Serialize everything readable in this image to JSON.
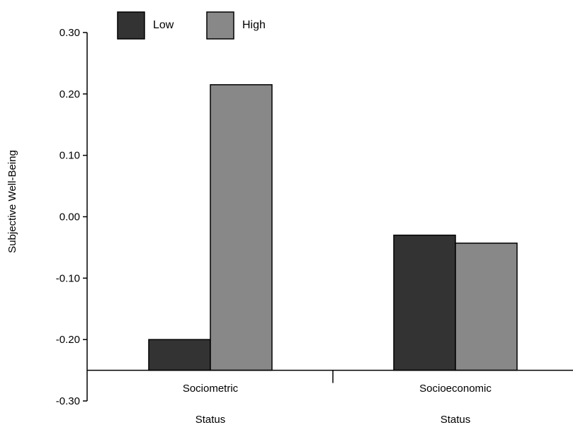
{
  "chart_data": {
    "type": "bar",
    "ylabel": "Subjective Well-Being",
    "ylim": [
      -0.3,
      0.3
    ],
    "yticks": [
      0.3,
      0.2,
      0.1,
      0.0,
      -0.1,
      -0.2,
      -0.3
    ],
    "ytick_labels": [
      "0.30",
      "0.20",
      "0.10",
      "0.00",
      "-0.10",
      "-0.20",
      "-0.30"
    ],
    "baseline": -0.25,
    "categories": [
      {
        "line1": "Sociometric",
        "line2": "Status"
      },
      {
        "line1": "Socioeconomic",
        "line2": "Status"
      }
    ],
    "series": [
      {
        "name": "Low",
        "color": "#333333",
        "values": [
          -0.2,
          -0.03
        ]
      },
      {
        "name": "High",
        "color": "#888888",
        "values": [
          0.215,
          -0.043
        ]
      }
    ],
    "legend": "top-left",
    "grid": false
  }
}
